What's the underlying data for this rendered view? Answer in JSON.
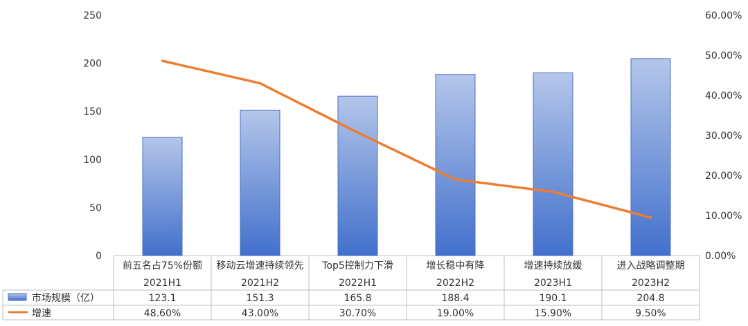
{
  "chart_data": {
    "type": "bar",
    "categories": [
      "2021H1",
      "2021H2",
      "2022H1",
      "2022H2",
      "2023H1",
      "2023H2"
    ],
    "category_notes": [
      "前五名占75%份额",
      "移动云增速持续领先",
      "Top5控制力下滑",
      "增长稳中有降",
      "增速持续放缓",
      "进入战略调整期"
    ],
    "series": [
      {
        "name": "市场规模（亿）",
        "type": "bar",
        "axis": "left",
        "values": [
          123.1,
          151.3,
          165.8,
          188.4,
          190.1,
          204.8
        ],
        "color": "#4472C4"
      },
      {
        "name": "增速",
        "type": "line",
        "axis": "right",
        "values": [
          48.6,
          43.0,
          30.7,
          19.0,
          15.9,
          9.5
        ],
        "color": "#ED7D31"
      }
    ],
    "table_values": {
      "market": [
        "123.1",
        "151.3",
        "165.8",
        "188.4",
        "190.1",
        "204.8"
      ],
      "growth": [
        "48.60%",
        "43.00%",
        "30.70%",
        "19.00%",
        "15.90%",
        "9.50%"
      ]
    },
    "left_axis": {
      "ylim": [
        0,
        250
      ],
      "ticks": [
        "0",
        "50",
        "100",
        "150",
        "200",
        "250"
      ]
    },
    "right_axis": {
      "ylim": [
        0,
        60
      ],
      "ticks": [
        "0.00%",
        "10.00%",
        "20.00%",
        "30.00%",
        "40.00%",
        "50.00%",
        "60.00%"
      ]
    },
    "grid": false,
    "legend_placement": "data-table-left"
  }
}
